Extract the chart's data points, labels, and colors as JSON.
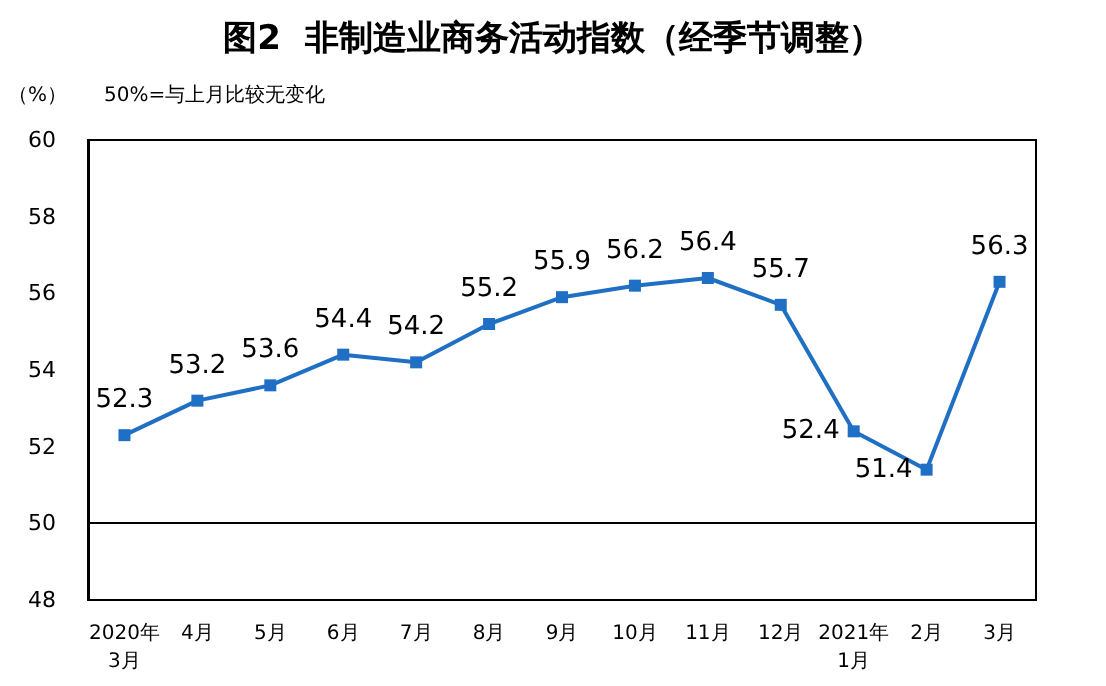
{
  "chart_data": {
    "type": "line",
    "title": "图2  非制造业商务活动指数（经季节调整）",
    "ylabel": "（%）",
    "annotations": [
      "50%=与上月比较无变化"
    ],
    "categories": [
      "2020年\n3月",
      "4月",
      "5月",
      "6月",
      "7月",
      "8月",
      "9月",
      "10月",
      "11月",
      "12月",
      "2021年\n1月",
      "2月",
      "3月"
    ],
    "series": [
      {
        "color": "#1f6fc5",
        "values": [
          52.3,
          53.2,
          53.6,
          54.4,
          54.2,
          55.2,
          55.9,
          56.2,
          56.4,
          55.7,
          52.4,
          51.4,
          56.3
        ]
      }
    ],
    "ylim": [
      48,
      60
    ],
    "yticks": [
      48,
      50,
      52,
      54,
      56,
      58,
      60
    ],
    "grid": false,
    "marker": "square",
    "data_labels": true,
    "line_style": "solid",
    "ref_lines": [
      {
        "axis": "y",
        "value": 50,
        "color": "#000000"
      }
    ]
  }
}
